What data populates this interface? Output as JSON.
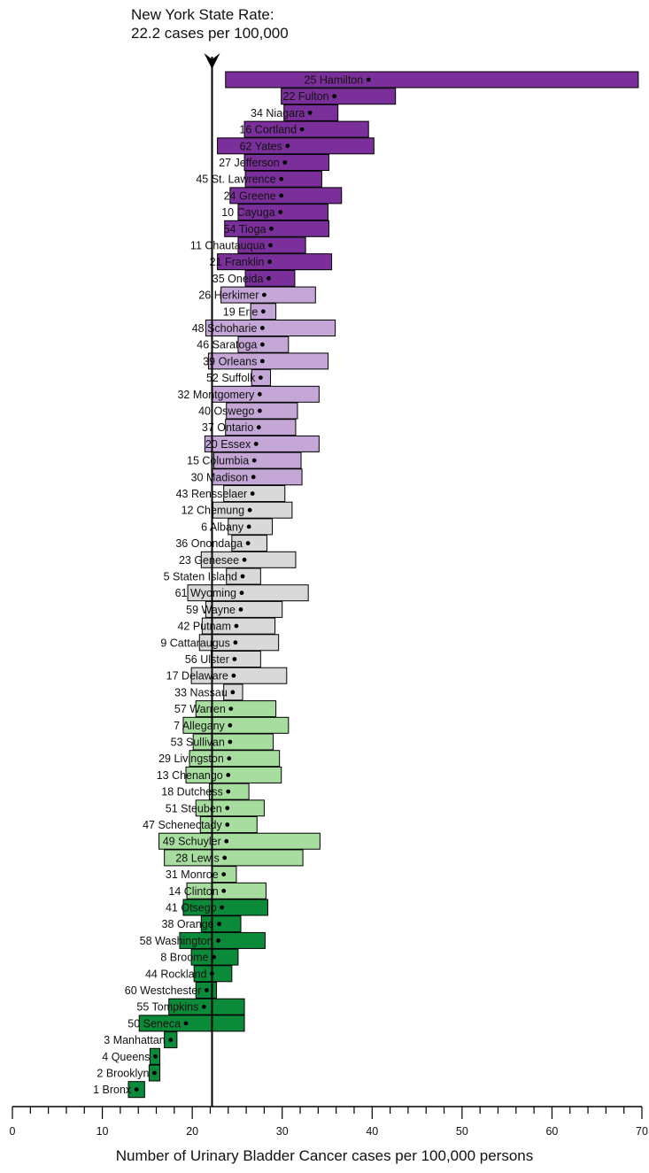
{
  "state_rate_label": {
    "line1": "New York State Rate:",
    "line2": "22.2 cases per 100,000"
  },
  "colors": {
    "purple_dark": "#7b2f9a",
    "purple_light": "#c4a7d6",
    "gray": "#d9d9d9",
    "green_light": "#a8dda0",
    "green_dark": "#0b8a3a"
  },
  "chart_data": {
    "type": "bar",
    "xlabel": "Number of Urinary Bladder Cancer cases per 100,000 persons",
    "xlim": [
      0,
      70
    ],
    "xticks": [
      0,
      10,
      20,
      30,
      40,
      50,
      60,
      70
    ],
    "reference_line": {
      "value": 22.2
    },
    "rows": [
      {
        "label": "25 Hamilton",
        "rate": 39.6,
        "low": 23.7,
        "high": 69.6,
        "group": "purple_dark"
      },
      {
        "label": "22 Fulton",
        "rate": 35.8,
        "low": 29.9,
        "high": 42.6,
        "group": "purple_dark"
      },
      {
        "label": "34 Niagara",
        "rate": 33.1,
        "low": 30.2,
        "high": 36.2,
        "group": "purple_dark"
      },
      {
        "label": "16 Cortland",
        "rate": 32.2,
        "low": 25.8,
        "high": 39.6,
        "group": "purple_dark"
      },
      {
        "label": "62 Yates",
        "rate": 30.6,
        "low": 22.8,
        "high": 40.2,
        "group": "purple_dark"
      },
      {
        "label": "27 Jefferson",
        "rate": 30.3,
        "low": 25.8,
        "high": 35.2,
        "group": "purple_dark"
      },
      {
        "label": "45 St. Lawrence",
        "rate": 29.9,
        "low": 25.9,
        "high": 34.4,
        "group": "purple_dark"
      },
      {
        "label": "24 Greene",
        "rate": 29.9,
        "low": 24.2,
        "high": 36.6,
        "group": "purple_dark"
      },
      {
        "label": "10 Cayuga",
        "rate": 29.8,
        "low": 25.1,
        "high": 35.1,
        "group": "purple_dark"
      },
      {
        "label": "54 Tioga",
        "rate": 28.8,
        "low": 23.6,
        "high": 35.2,
        "group": "purple_dark"
      },
      {
        "label": "11 Chautauqua",
        "rate": 28.7,
        "low": 25.1,
        "high": 32.6,
        "group": "purple_dark"
      },
      {
        "label": "21 Franklin",
        "rate": 28.6,
        "low": 22.8,
        "high": 35.5,
        "group": "purple_dark"
      },
      {
        "label": "35 Oneida",
        "rate": 28.5,
        "low": 25.9,
        "high": 31.4,
        "group": "purple_dark"
      },
      {
        "label": "26 Herkimer",
        "rate": 28.0,
        "low": 23.2,
        "high": 33.7,
        "group": "purple_light"
      },
      {
        "label": "19 Erie",
        "rate": 27.9,
        "low": 26.5,
        "high": 29.3,
        "group": "purple_light"
      },
      {
        "label": "48 Schoharie",
        "rate": 27.8,
        "low": 21.5,
        "high": 35.9,
        "group": "purple_light"
      },
      {
        "label": "46 Saratoga",
        "rate": 27.8,
        "low": 25.1,
        "high": 30.7,
        "group": "purple_light"
      },
      {
        "label": "39 Orleans",
        "rate": 27.8,
        "low": 21.8,
        "high": 35.1,
        "group": "purple_light"
      },
      {
        "label": "52 Suffolk",
        "rate": 27.6,
        "low": 26.6,
        "high": 28.7,
        "group": "purple_light"
      },
      {
        "label": "32 Montgomery",
        "rate": 27.5,
        "low": 22.2,
        "high": 34.1,
        "group": "purple_light"
      },
      {
        "label": "40 Oswego",
        "rate": 27.5,
        "low": 23.8,
        "high": 31.7,
        "group": "purple_light"
      },
      {
        "label": "37 Ontario",
        "rate": 27.4,
        "low": 23.7,
        "high": 31.5,
        "group": "purple_light"
      },
      {
        "label": "20 Essex",
        "rate": 27.1,
        "low": 21.4,
        "high": 34.1,
        "group": "purple_light"
      },
      {
        "label": "15 Columbia",
        "rate": 26.9,
        "low": 22.4,
        "high": 32.1,
        "group": "purple_light"
      },
      {
        "label": "30 Madison",
        "rate": 26.8,
        "low": 22.2,
        "high": 32.2,
        "group": "purple_light"
      },
      {
        "label": "43 Rensselaer",
        "rate": 26.7,
        "low": 23.5,
        "high": 30.3,
        "group": "gray"
      },
      {
        "label": "12 Chemung",
        "rate": 26.4,
        "low": 22.3,
        "high": 31.1,
        "group": "gray"
      },
      {
        "label": "6 Albany",
        "rate": 26.3,
        "low": 24.0,
        "high": 28.9,
        "group": "gray"
      },
      {
        "label": "36 Onondaga",
        "rate": 26.2,
        "low": 24.4,
        "high": 28.3,
        "group": "gray"
      },
      {
        "label": "23 Genesee",
        "rate": 25.8,
        "low": 21.0,
        "high": 31.5,
        "group": "gray"
      },
      {
        "label": "5 Staten Island",
        "rate": 25.6,
        "low": 23.8,
        "high": 27.6,
        "group": "gray"
      },
      {
        "label": "61 Wyoming",
        "rate": 25.5,
        "low": 19.5,
        "high": 32.9,
        "group": "gray"
      },
      {
        "label": "59 Wayne",
        "rate": 25.4,
        "low": 21.5,
        "high": 30.0,
        "group": "gray"
      },
      {
        "label": "42 Putnam",
        "rate": 24.9,
        "low": 21.1,
        "high": 29.2,
        "group": "gray"
      },
      {
        "label": "9 Cattaraugus",
        "rate": 24.8,
        "low": 20.8,
        "high": 29.6,
        "group": "gray"
      },
      {
        "label": "56 Ulster",
        "rate": 24.7,
        "low": 22.1,
        "high": 27.6,
        "group": "gray"
      },
      {
        "label": "17 Delaware",
        "rate": 24.6,
        "low": 19.9,
        "high": 30.5,
        "group": "gray"
      },
      {
        "label": "33 Nassau",
        "rate": 24.5,
        "low": 23.5,
        "high": 25.6,
        "group": "gray"
      },
      {
        "label": "57 Warren",
        "rate": 24.3,
        "low": 20.4,
        "high": 29.3,
        "group": "green_light"
      },
      {
        "label": "7 Allegany",
        "rate": 24.2,
        "low": 19.0,
        "high": 30.7,
        "group": "green_light"
      },
      {
        "label": "53 Sullivan",
        "rate": 24.2,
        "low": 20.1,
        "high": 29.0,
        "group": "green_light"
      },
      {
        "label": "29 Livingston",
        "rate": 24.1,
        "low": 19.7,
        "high": 29.7,
        "group": "green_light"
      },
      {
        "label": "13 Chenango",
        "rate": 24.0,
        "low": 19.3,
        "high": 29.9,
        "group": "green_light"
      },
      {
        "label": "18 Dutchess",
        "rate": 24.0,
        "low": 21.9,
        "high": 26.3,
        "group": "green_light"
      },
      {
        "label": "51 Steuben",
        "rate": 23.9,
        "low": 20.4,
        "high": 28.0,
        "group": "green_light"
      },
      {
        "label": "47 Schenectady",
        "rate": 23.9,
        "low": 20.9,
        "high": 27.2,
        "group": "green_light"
      },
      {
        "label": "49 Schuyler",
        "rate": 23.8,
        "low": 16.3,
        "high": 34.2,
        "group": "green_light"
      },
      {
        "label": "28 Lewis",
        "rate": 23.6,
        "low": 16.9,
        "high": 32.3,
        "group": "green_light"
      },
      {
        "label": "31 Monroe",
        "rate": 23.5,
        "low": 22.2,
        "high": 24.9,
        "group": "green_light"
      },
      {
        "label": "14 Clinton",
        "rate": 23.5,
        "low": 19.4,
        "high": 28.2,
        "group": "green_light"
      },
      {
        "label": "41 Otsego",
        "rate": 23.3,
        "low": 19.0,
        "high": 28.4,
        "group": "green_dark"
      },
      {
        "label": "38 Orange",
        "rate": 23.0,
        "low": 21.0,
        "high": 25.4,
        "group": "green_dark"
      },
      {
        "label": "58 Washington",
        "rate": 22.9,
        "low": 18.6,
        "high": 28.1,
        "group": "green_dark"
      },
      {
        "label": "8 Broome",
        "rate": 22.4,
        "low": 19.9,
        "high": 25.1,
        "group": "green_dark"
      },
      {
        "label": "44 Rockland",
        "rate": 22.2,
        "low": 20.2,
        "high": 24.4,
        "group": "green_dark"
      },
      {
        "label": "60 Westchester",
        "rate": 21.6,
        "low": 20.4,
        "high": 22.7,
        "group": "green_dark"
      },
      {
        "label": "55 Tompkins",
        "rate": 21.3,
        "low": 17.4,
        "high": 25.8,
        "group": "green_dark"
      },
      {
        "label": "50 Seneca",
        "rate": 19.3,
        "low": 14.1,
        "high": 25.8,
        "group": "green_dark"
      },
      {
        "label": "3 Manhattan",
        "rate": 17.6,
        "low": 16.9,
        "high": 18.3,
        "group": "green_dark"
      },
      {
        "label": "4 Queens",
        "rate": 15.9,
        "low": 15.3,
        "high": 16.4,
        "group": "green_dark"
      },
      {
        "label": "2 Brooklyn",
        "rate": 15.8,
        "low": 15.2,
        "high": 16.4,
        "group": "green_dark"
      },
      {
        "label": "1 Bronx",
        "rate": 13.8,
        "low": 12.9,
        "high": 14.7,
        "group": "green_dark"
      }
    ]
  }
}
